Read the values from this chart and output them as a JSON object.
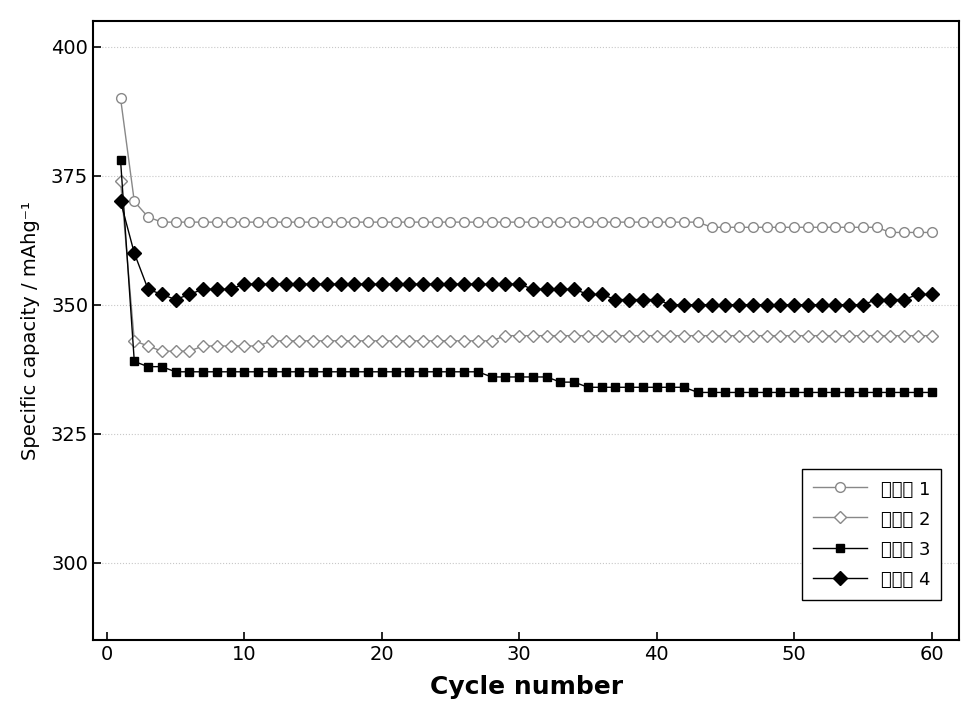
{
  "xlabel": "Cycle number",
  "ylabel": "Specific capacity / mAhg⁻¹",
  "xlim": [
    -1,
    62
  ],
  "ylim": [
    285,
    405
  ],
  "yticks": [
    300,
    325,
    350,
    375,
    400
  ],
  "xticks": [
    0,
    10,
    20,
    30,
    40,
    50,
    60
  ],
  "background_color": "#ffffff",
  "grid_color": "#c8c8c8",
  "series": [
    {
      "label": "实施例 1",
      "color": "#888888",
      "marker": "o",
      "markerfacecolor": "white",
      "markeredgecolor": "#888888",
      "markersize": 7,
      "linewidth": 1.0,
      "x": [
        1,
        2,
        3,
        4,
        5,
        6,
        7,
        8,
        9,
        10,
        11,
        12,
        13,
        14,
        15,
        16,
        17,
        18,
        19,
        20,
        21,
        22,
        23,
        24,
        25,
        26,
        27,
        28,
        29,
        30,
        31,
        32,
        33,
        34,
        35,
        36,
        37,
        38,
        39,
        40,
        41,
        42,
        43,
        44,
        45,
        46,
        47,
        48,
        49,
        50,
        51,
        52,
        53,
        54,
        55,
        56,
        57,
        58,
        59,
        60
      ],
      "y": [
        390,
        370,
        367,
        366,
        366,
        366,
        366,
        366,
        366,
        366,
        366,
        366,
        366,
        366,
        366,
        366,
        366,
        366,
        366,
        366,
        366,
        366,
        366,
        366,
        366,
        366,
        366,
        366,
        366,
        366,
        366,
        366,
        366,
        366,
        366,
        366,
        366,
        366,
        366,
        366,
        366,
        366,
        366,
        365,
        365,
        365,
        365,
        365,
        365,
        365,
        365,
        365,
        365,
        365,
        365,
        365,
        364,
        364,
        364,
        364
      ]
    },
    {
      "label": "实施例 2",
      "color": "#888888",
      "marker": "D",
      "markerfacecolor": "white",
      "markeredgecolor": "#888888",
      "markersize": 6,
      "linewidth": 1.0,
      "x": [
        1,
        2,
        3,
        4,
        5,
        6,
        7,
        8,
        9,
        10,
        11,
        12,
        13,
        14,
        15,
        16,
        17,
        18,
        19,
        20,
        21,
        22,
        23,
        24,
        25,
        26,
        27,
        28,
        29,
        30,
        31,
        32,
        33,
        34,
        35,
        36,
        37,
        38,
        39,
        40,
        41,
        42,
        43,
        44,
        45,
        46,
        47,
        48,
        49,
        50,
        51,
        52,
        53,
        54,
        55,
        56,
        57,
        58,
        59,
        60
      ],
      "y": [
        374,
        343,
        342,
        341,
        341,
        341,
        342,
        342,
        342,
        342,
        342,
        343,
        343,
        343,
        343,
        343,
        343,
        343,
        343,
        343,
        343,
        343,
        343,
        343,
        343,
        343,
        343,
        343,
        344,
        344,
        344,
        344,
        344,
        344,
        344,
        344,
        344,
        344,
        344,
        344,
        344,
        344,
        344,
        344,
        344,
        344,
        344,
        344,
        344,
        344,
        344,
        344,
        344,
        344,
        344,
        344,
        344,
        344,
        344,
        344
      ]
    },
    {
      "label": "实施例 3",
      "color": "#000000",
      "marker": "s",
      "markerfacecolor": "#000000",
      "markeredgecolor": "#000000",
      "markersize": 6,
      "linewidth": 1.0,
      "x": [
        1,
        2,
        3,
        4,
        5,
        6,
        7,
        8,
        9,
        10,
        11,
        12,
        13,
        14,
        15,
        16,
        17,
        18,
        19,
        20,
        21,
        22,
        23,
        24,
        25,
        26,
        27,
        28,
        29,
        30,
        31,
        32,
        33,
        34,
        35,
        36,
        37,
        38,
        39,
        40,
        41,
        42,
        43,
        44,
        45,
        46,
        47,
        48,
        49,
        50,
        51,
        52,
        53,
        54,
        55,
        56,
        57,
        58,
        59,
        60
      ],
      "y": [
        378,
        339,
        338,
        338,
        337,
        337,
        337,
        337,
        337,
        337,
        337,
        337,
        337,
        337,
        337,
        337,
        337,
        337,
        337,
        337,
        337,
        337,
        337,
        337,
        337,
        337,
        337,
        336,
        336,
        336,
        336,
        336,
        335,
        335,
        334,
        334,
        334,
        334,
        334,
        334,
        334,
        334,
        333,
        333,
        333,
        333,
        333,
        333,
        333,
        333,
        333,
        333,
        333,
        333,
        333,
        333,
        333,
        333,
        333,
        333
      ]
    },
    {
      "label": "实施例 4",
      "color": "#000000",
      "marker": "D",
      "markerfacecolor": "#000000",
      "markeredgecolor": "#000000",
      "markersize": 7,
      "linewidth": 1.0,
      "x": [
        1,
        2,
        3,
        4,
        5,
        6,
        7,
        8,
        9,
        10,
        11,
        12,
        13,
        14,
        15,
        16,
        17,
        18,
        19,
        20,
        21,
        22,
        23,
        24,
        25,
        26,
        27,
        28,
        29,
        30,
        31,
        32,
        33,
        34,
        35,
        36,
        37,
        38,
        39,
        40,
        41,
        42,
        43,
        44,
        45,
        46,
        47,
        48,
        49,
        50,
        51,
        52,
        53,
        54,
        55,
        56,
        57,
        58,
        59,
        60
      ],
      "y": [
        370,
        360,
        353,
        352,
        351,
        352,
        353,
        353,
        353,
        354,
        354,
        354,
        354,
        354,
        354,
        354,
        354,
        354,
        354,
        354,
        354,
        354,
        354,
        354,
        354,
        354,
        354,
        354,
        354,
        354,
        353,
        353,
        353,
        353,
        352,
        352,
        351,
        351,
        351,
        351,
        350,
        350,
        350,
        350,
        350,
        350,
        350,
        350,
        350,
        350,
        350,
        350,
        350,
        350,
        350,
        351,
        351,
        351,
        352,
        352
      ]
    }
  ]
}
